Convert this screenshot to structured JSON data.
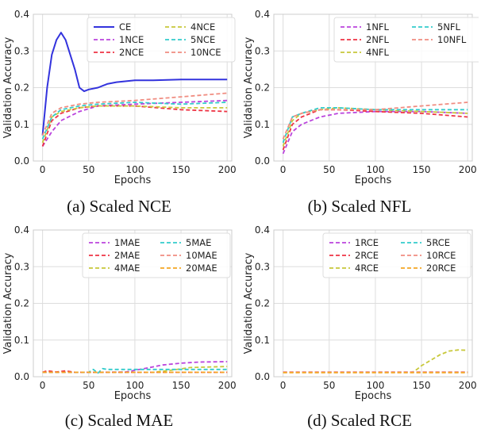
{
  "chart_data": [
    {
      "type": "line",
      "caption": "(a) Scaled NCE",
      "xlabel": "Epochs",
      "ylabel": "Validation Accuracy",
      "xlim": [
        -10,
        205
      ],
      "ylim": [
        0,
        0.4
      ],
      "xticks": [
        "0",
        "50",
        "100",
        "150",
        "200"
      ],
      "yticks": [
        "0.0",
        "0.1",
        "0.2",
        "0.3",
        "0.4"
      ],
      "legend_rows": [
        [
          "CE",
          "4NCE"
        ],
        [
          "1NCE",
          "5NCE"
        ],
        [
          "2NCE",
          "10NCE"
        ]
      ],
      "series": [
        {
          "name": "CE",
          "color": "#3333dd",
          "dash": "solid",
          "x": [
            0,
            5,
            10,
            15,
            20,
            25,
            30,
            35,
            40,
            45,
            50,
            60,
            70,
            80,
            100,
            120,
            150,
            200
          ],
          "y": [
            0.07,
            0.2,
            0.29,
            0.33,
            0.35,
            0.33,
            0.29,
            0.25,
            0.2,
            0.19,
            0.195,
            0.2,
            0.21,
            0.215,
            0.22,
            0.22,
            0.222,
            0.222
          ]
        },
        {
          "name": "1NCE",
          "color": "#bb44dd",
          "dash": "dashed",
          "x": [
            0,
            10,
            20,
            40,
            60,
            100,
            150,
            200
          ],
          "y": [
            0.04,
            0.08,
            0.11,
            0.135,
            0.15,
            0.155,
            0.16,
            0.165
          ]
        },
        {
          "name": "2NCE",
          "color": "#ee3344",
          "dash": "dashed",
          "x": [
            0,
            10,
            20,
            40,
            60,
            100,
            150,
            200
          ],
          "y": [
            0.04,
            0.11,
            0.13,
            0.145,
            0.15,
            0.15,
            0.14,
            0.135
          ]
        },
        {
          "name": "4NCE",
          "color": "#c8c83a",
          "dash": "dashed",
          "x": [
            0,
            10,
            20,
            40,
            60,
            100,
            150,
            200
          ],
          "y": [
            0.05,
            0.12,
            0.135,
            0.145,
            0.15,
            0.15,
            0.145,
            0.145
          ]
        },
        {
          "name": "5NCE",
          "color": "#33cccc",
          "dash": "dashed",
          "x": [
            0,
            10,
            20,
            40,
            60,
            100,
            150,
            200
          ],
          "y": [
            0.06,
            0.12,
            0.14,
            0.15,
            0.155,
            0.16,
            0.155,
            0.16
          ]
        },
        {
          "name": "10NCE",
          "color": "#f08c80",
          "dash": "dashed",
          "x": [
            0,
            10,
            20,
            40,
            60,
            100,
            150,
            200
          ],
          "y": [
            0.07,
            0.13,
            0.145,
            0.155,
            0.16,
            0.165,
            0.175,
            0.185
          ]
        }
      ]
    },
    {
      "type": "line",
      "caption": "(b) Scaled NFL",
      "xlabel": "Epochs",
      "ylabel": "Validation Accuracy",
      "xlim": [
        -10,
        205
      ],
      "ylim": [
        0,
        0.4
      ],
      "xticks": [
        "0",
        "50",
        "100",
        "150",
        "200"
      ],
      "yticks": [
        "0.0",
        "0.1",
        "0.2",
        "0.3",
        "0.4"
      ],
      "legend_rows": [
        [
          "1NFL",
          "5NFL"
        ],
        [
          "2NFL",
          "10NFL"
        ],
        [
          "4NFL",
          ""
        ]
      ],
      "series": [
        {
          "name": "1NFL",
          "color": "#bb44dd",
          "dash": "dashed",
          "x": [
            0,
            10,
            20,
            40,
            60,
            100,
            150,
            200
          ],
          "y": [
            0.02,
            0.08,
            0.1,
            0.12,
            0.13,
            0.135,
            0.135,
            0.13
          ]
        },
        {
          "name": "2NFL",
          "color": "#ee3344",
          "dash": "dashed",
          "x": [
            0,
            10,
            20,
            40,
            60,
            100,
            150,
            200
          ],
          "y": [
            0.03,
            0.1,
            0.12,
            0.14,
            0.14,
            0.135,
            0.13,
            0.12
          ]
        },
        {
          "name": "4NFL",
          "color": "#c8c83a",
          "dash": "dashed",
          "x": [
            0,
            10,
            20,
            40,
            60,
            100,
            150,
            200
          ],
          "y": [
            0.04,
            0.11,
            0.13,
            0.14,
            0.145,
            0.14,
            0.135,
            0.13
          ]
        },
        {
          "name": "5NFL",
          "color": "#33cccc",
          "dash": "dashed",
          "x": [
            0,
            10,
            20,
            40,
            60,
            100,
            150,
            200
          ],
          "y": [
            0.05,
            0.12,
            0.13,
            0.145,
            0.145,
            0.14,
            0.14,
            0.14
          ]
        },
        {
          "name": "10NFL",
          "color": "#f08c80",
          "dash": "dashed",
          "x": [
            0,
            10,
            20,
            40,
            60,
            100,
            150,
            200
          ],
          "y": [
            0.06,
            0.12,
            0.13,
            0.14,
            0.14,
            0.14,
            0.15,
            0.16
          ]
        }
      ]
    },
    {
      "type": "line",
      "caption": "(c) Scaled MAE",
      "xlabel": "Epochs",
      "ylabel": "Validation Accuracy",
      "xlim": [
        -10,
        205
      ],
      "ylim": [
        0,
        0.4
      ],
      "xticks": [
        "0",
        "50",
        "100",
        "150",
        "200"
      ],
      "yticks": [
        "0.0",
        "0.1",
        "0.2",
        "0.3",
        "0.4"
      ],
      "legend_rows": [
        [
          "1MAE",
          "5MAE"
        ],
        [
          "2MAE",
          "10MAE"
        ],
        [
          "4MAE",
          "20MAE"
        ]
      ],
      "series": [
        {
          "name": "1MAE",
          "color": "#bb44dd",
          "dash": "dashed",
          "x": [
            0,
            60,
            90,
            110,
            130,
            150,
            170,
            200
          ],
          "y": [
            0.012,
            0.012,
            0.013,
            0.022,
            0.032,
            0.037,
            0.04,
            0.041
          ]
        },
        {
          "name": "2MAE",
          "color": "#ee3344",
          "dash": "dashed",
          "x": [
            0,
            5,
            15,
            25,
            35,
            200
          ],
          "y": [
            0.012,
            0.016,
            0.013,
            0.016,
            0.012,
            0.012
          ]
        },
        {
          "name": "4MAE",
          "color": "#c8c83a",
          "dash": "dashed",
          "x": [
            0,
            120,
            140,
            160,
            200
          ],
          "y": [
            0.012,
            0.012,
            0.018,
            0.025,
            0.028
          ]
        },
        {
          "name": "5MAE",
          "color": "#33cccc",
          "dash": "dashed",
          "x": [
            0,
            50,
            55,
            60,
            65,
            70,
            100,
            200
          ],
          "y": [
            0.012,
            0.012,
            0.02,
            0.01,
            0.022,
            0.02,
            0.02,
            0.02
          ]
        },
        {
          "name": "10MAE",
          "color": "#f08c80",
          "dash": "dashed",
          "x": [
            0,
            200
          ],
          "y": [
            0.012,
            0.012
          ]
        },
        {
          "name": "20MAE",
          "color": "#f5a623",
          "dash": "dashed",
          "x": [
            0,
            200
          ],
          "y": [
            0.012,
            0.012
          ]
        }
      ]
    },
    {
      "type": "line",
      "caption": "(d) Scaled RCE",
      "xlabel": "Epochs",
      "ylabel": "Validation Accuracy",
      "xlim": [
        -10,
        205
      ],
      "ylim": [
        0,
        0.4
      ],
      "xticks": [
        "0",
        "50",
        "100",
        "150",
        "200"
      ],
      "yticks": [
        "0.0",
        "0.1",
        "0.2",
        "0.3",
        "0.4"
      ],
      "legend_rows": [
        [
          "1RCE",
          "5RCE"
        ],
        [
          "2RCE",
          "10RCE"
        ],
        [
          "4RCE",
          "20RCE"
        ]
      ],
      "series": [
        {
          "name": "1RCE",
          "color": "#bb44dd",
          "dash": "dashed",
          "x": [
            0,
            200
          ],
          "y": [
            0.012,
            0.012
          ]
        },
        {
          "name": "2RCE",
          "color": "#ee3344",
          "dash": "dashed",
          "x": [
            0,
            200
          ],
          "y": [
            0.012,
            0.012
          ]
        },
        {
          "name": "4RCE",
          "color": "#c8c83a",
          "dash": "dashed",
          "x": [
            0,
            140,
            145,
            150,
            160,
            170,
            180,
            190,
            200
          ],
          "y": [
            0.012,
            0.012,
            0.02,
            0.03,
            0.045,
            0.06,
            0.07,
            0.073,
            0.072
          ]
        },
        {
          "name": "5RCE",
          "color": "#33cccc",
          "dash": "dashed",
          "x": [
            0,
            200
          ],
          "y": [
            0.012,
            0.012
          ]
        },
        {
          "name": "10RCE",
          "color": "#f08c80",
          "dash": "dashed",
          "x": [
            0,
            200
          ],
          "y": [
            0.013,
            0.013
          ]
        },
        {
          "name": "20RCE",
          "color": "#f5a623",
          "dash": "dashed",
          "x": [
            0,
            200
          ],
          "y": [
            0.011,
            0.011
          ]
        }
      ]
    }
  ]
}
